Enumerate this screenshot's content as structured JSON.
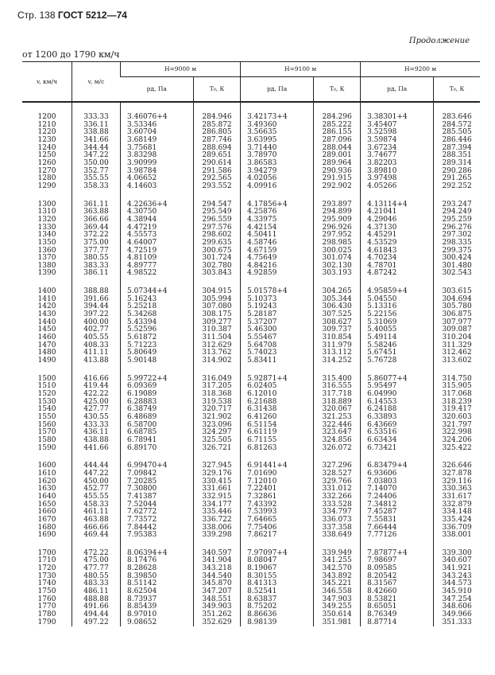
{
  "header": {
    "page": "Стр. 138",
    "standard": "ГОСТ 5212—74"
  },
  "continued": "Продолжение",
  "range": "от 1200 до 1790 км/ч",
  "columns": {
    "v_kmh": "v, км/ч",
    "v_ms": "v, м/с",
    "groups": [
      "H=9000 м",
      "H=9100 м",
      "H=9200 м"
    ],
    "p": "pд, Па",
    "t": "T₀, К"
  },
  "rows": [
    [
      "1200",
      "333.33",
      "3.46076+4",
      "284.946",
      "3.42173+4",
      "284.296",
      "3.38301+4",
      "283.646"
    ],
    [
      "1210",
      "336.11",
      "3.53346",
      "285.872",
      "3.49360",
      "285.222",
      "3.45407",
      "284.572"
    ],
    [
      "1220",
      "338.88",
      "3.60704",
      "286.805",
      "3.56635",
      "286.155",
      "3.52598",
      "285.505"
    ],
    [
      "1230",
      "341.66",
      "3.68149",
      "287.746",
      "3.63995",
      "287.096",
      "3.59874",
      "286.446"
    ],
    [
      "1240",
      "344.44",
      "3.75681",
      "288.694",
      "3.71440",
      "288.044",
      "3.67234",
      "287.394"
    ],
    [
      "1250",
      "347.22",
      "3.83298",
      "289.651",
      "3.78970",
      "289.001",
      "3.74677",
      "288.351"
    ],
    [
      "1260",
      "350.00",
      "3.90999",
      "290.614",
      "3.86583",
      "289.964",
      "3.82203",
      "289.314"
    ],
    [
      "1270",
      "352.77",
      "3.98784",
      "291.586",
      "3.94279",
      "290.936",
      "3.89810",
      "290.286"
    ],
    [
      "1280",
      "355.55",
      "4.06652",
      "292.565",
      "4.02056",
      "291.915",
      "3.97498",
      "291.265"
    ],
    [
      "1290",
      "358.33",
      "4.14603",
      "293.552",
      "4.09916",
      "292.902",
      "4.05266",
      "292.252"
    ],
    [
      "1300",
      "361.11",
      "4.22636+4",
      "294.547",
      "4.17856+4",
      "293.897",
      "4.13114+4",
      "293.247"
    ],
    [
      "1310",
      "363.88",
      "4.30750",
      "295.549",
      "4.25876",
      "294.899",
      "4.21041",
      "294.249"
    ],
    [
      "1320",
      "366.66",
      "4.38944",
      "296.559",
      "4.33975",
      "295.909",
      "4.29046",
      "295.259"
    ],
    [
      "1330",
      "369.44",
      "4.47219",
      "297.576",
      "4.42154",
      "296.926",
      "4.37130",
      "296.276"
    ],
    [
      "1340",
      "372.22",
      "4.55573",
      "298.602",
      "4.50411",
      "297.952",
      "4.45291",
      "297.302"
    ],
    [
      "1350",
      "375.00",
      "4.64007",
      "299.635",
      "4.58746",
      "298.985",
      "4.53529",
      "298.335"
    ],
    [
      "1360",
      "377.77",
      "4.72519",
      "300.675",
      "4.67159",
      "300.025",
      "4.61843",
      "299.375"
    ],
    [
      "1370",
      "380.55",
      "4.81109",
      "301.724",
      "4.75649",
      "301.074",
      "4.70234",
      "300.424"
    ],
    [
      "1380",
      "383.33",
      "4.89777",
      "302.780",
      "4.84216",
      "302.130",
      "4.78701",
      "301.480"
    ],
    [
      "1390",
      "386.11",
      "4.98522",
      "303.843",
      "4.92859",
      "303.193",
      "4.87242",
      "302.543"
    ],
    [
      "1400",
      "388.88",
      "5.07344+4",
      "304.915",
      "5.01578+4",
      "304.265",
      "4.95859+4",
      "303.615"
    ],
    [
      "1410",
      "391.66",
      "5.16243",
      "305.994",
      "5.10373",
      "305.344",
      "5.04550",
      "304.694"
    ],
    [
      "1420",
      "394.44",
      "5.25218",
      "307.080",
      "5.19243",
      "306.430",
      "5.13316",
      "305.780"
    ],
    [
      "1430",
      "397.22",
      "5.34268",
      "308.175",
      "5.28187",
      "307.525",
      "5.22156",
      "306.875"
    ],
    [
      "1440",
      "400.00",
      "5.43394",
      "309.277",
      "5.37207",
      "308.627",
      "5.31069",
      "307.977"
    ],
    [
      "1450",
      "402.77",
      "5.52596",
      "310.387",
      "5.46300",
      "309.737",
      "5.40055",
      "309.087"
    ],
    [
      "1460",
      "405.55",
      "5.61872",
      "311.504",
      "5.55467",
      "310.854",
      "5.49114",
      "310.204"
    ],
    [
      "1470",
      "408.33",
      "5.71223",
      "312.629",
      "5.64708",
      "311.979",
      "5.58246",
      "311.329"
    ],
    [
      "1480",
      "411.11",
      "5.80649",
      "313.762",
      "5.74023",
      "313.112",
      "5.67451",
      "312.462"
    ],
    [
      "1490",
      "413.88",
      "5.90148",
      "314.902",
      "5.83411",
      "314.252",
      "5.76728",
      "313.602"
    ],
    [
      "1500",
      "416.66",
      "5.99722+4",
      "316.049",
      "5.92871+4",
      "315.400",
      "5.86077+4",
      "314.750"
    ],
    [
      "1510",
      "419.44",
      "6.09369",
      "317.205",
      "6.02405",
      "316.555",
      "5.95497",
      "315.905"
    ],
    [
      "1520",
      "422.22",
      "6.19089",
      "318.368",
      "6.12010",
      "317.718",
      "6.04990",
      "317.068"
    ],
    [
      "1530",
      "425.00",
      "6.28883",
      "319.538",
      "6.21688",
      "318.889",
      "6.14553",
      "318.239"
    ],
    [
      "1540",
      "427.77",
      "6.38749",
      "320.717",
      "6.31438",
      "320.067",
      "6.24188",
      "319.417"
    ],
    [
      "1550",
      "430.55",
      "6.48689",
      "321.902",
      "6.41260",
      "321.253",
      "6.33893",
      "320.603"
    ],
    [
      "1560",
      "433.33",
      "6.58700",
      "323.096",
      "6.51154",
      "322.446",
      "6.43669",
      "321.797"
    ],
    [
      "1570",
      "436.11",
      "6.68785",
      "324.297",
      "6.61119",
      "323.647",
      "6.53516",
      "322.998"
    ],
    [
      "1580",
      "438.88",
      "6.78941",
      "325.505",
      "6.71155",
      "324.856",
      "6.63434",
      "324.206"
    ],
    [
      "1590",
      "441.66",
      "6.89170",
      "326.721",
      "6.81263",
      "326.072",
      "6.73421",
      "325.422"
    ],
    [
      "1600",
      "444.44",
      "6.99470+4",
      "327.945",
      "6.91441+4",
      "327.296",
      "6.83479+4",
      "326.646"
    ],
    [
      "1610",
      "447.22",
      "7.09842",
      "329.176",
      "7.01690",
      "328.527",
      "6.93606",
      "327.878"
    ],
    [
      "1620",
      "450.00",
      "7.20285",
      "330.415",
      "7.12010",
      "329.766",
      "7.03803",
      "329.116"
    ],
    [
      "1630",
      "452.77",
      "7.30800",
      "331.661",
      "7.22401",
      "331.012",
      "7.14070",
      "330.363"
    ],
    [
      "1640",
      "455.55",
      "7.41387",
      "332.915",
      "7.32861",
      "332.266",
      "7.24406",
      "331.617"
    ],
    [
      "1650",
      "458.33",
      "7.52044",
      "334.177",
      "7.43392",
      "333.528",
      "7.34812",
      "332.879"
    ],
    [
      "1660",
      "461.11",
      "7.62772",
      "335.446",
      "7.53993",
      "334.797",
      "7.45287",
      "334.148"
    ],
    [
      "1670",
      "463.88",
      "7.73572",
      "336.722",
      "7.64665",
      "336.073",
      "7.55831",
      "335.424"
    ],
    [
      "1680",
      "466.66",
      "7.84442",
      "338.006",
      "7.75406",
      "337.358",
      "7.66444",
      "336.709"
    ],
    [
      "1690",
      "469.44",
      "7.95383",
      "339.298",
      "7.86217",
      "338.649",
      "7.77126",
      "338.001"
    ],
    [
      "1700",
      "472.22",
      "8.06394+4",
      "340.597",
      "7.97097+4",
      "339.949",
      "7.87877+4",
      "339.300"
    ],
    [
      "1710",
      "475.00",
      "8.17476",
      "341.904",
      "8.08047",
      "341.255",
      "7.98697",
      "340.607"
    ],
    [
      "1720",
      "477.77",
      "8.28628",
      "343.218",
      "8.19067",
      "342.570",
      "8.09585",
      "341.921"
    ],
    [
      "1730",
      "480.55",
      "8.39850",
      "344.540",
      "8.30155",
      "343.892",
      "8.20542",
      "343.243"
    ],
    [
      "1740",
      "483.33",
      "8.51142",
      "345.870",
      "8.41313",
      "345.221",
      "8.31567",
      "344.573"
    ],
    [
      "1750",
      "486.11",
      "8.62504",
      "347.207",
      "8.52541",
      "346.558",
      "8.42660",
      "345.910"
    ],
    [
      "1760",
      "488.88",
      "8.73937",
      "348.551",
      "8.63837",
      "347.903",
      "8.53821",
      "347.254"
    ],
    [
      "1770",
      "491.66",
      "8.85439",
      "349.903",
      "8.75202",
      "349.255",
      "8.65051",
      "348.606"
    ],
    [
      "1780",
      "494.44",
      "8.97010",
      "351.262",
      "8.86636",
      "350.614",
      "8.76349",
      "349.966"
    ],
    [
      "1790",
      "497.22",
      "9.08652",
      "352.629",
      "8.98139",
      "351.981",
      "8.87714",
      "351.333"
    ]
  ]
}
